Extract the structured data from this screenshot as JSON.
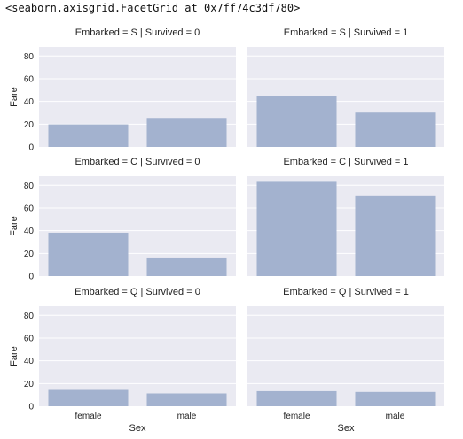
{
  "repr": "<seaborn.axisgrid.FacetGrid at 0x7ff74c3df780>",
  "colors": {
    "panel_bg": "#EAEAF2",
    "bar": "#A3B2CF",
    "grid": "#FFFFFF"
  },
  "chart_data": {
    "type": "bar",
    "xlabel": "Sex",
    "ylabel": "Fare",
    "categories": [
      "female",
      "male"
    ],
    "ylim": [
      0,
      88
    ],
    "yticks": [
      0,
      20,
      40,
      60,
      80
    ],
    "grid": true,
    "facets": [
      {
        "title": "Embarked = S | Survived = 0",
        "values": [
          19.8,
          25.5
        ]
      },
      {
        "title": "Embarked = S | Survived = 1",
        "values": [
          44.6,
          30.2
        ]
      },
      {
        "title": "Embarked = C | Survived = 0",
        "values": [
          38.2,
          16.4
        ]
      },
      {
        "title": "Embarked = C | Survived = 1",
        "values": [
          83.0,
          71.0
        ]
      },
      {
        "title": "Embarked = Q | Survived = 0",
        "values": [
          14.4,
          11.3
        ]
      },
      {
        "title": "Embarked = Q | Survived = 1",
        "values": [
          13.3,
          12.6
        ]
      }
    ]
  }
}
